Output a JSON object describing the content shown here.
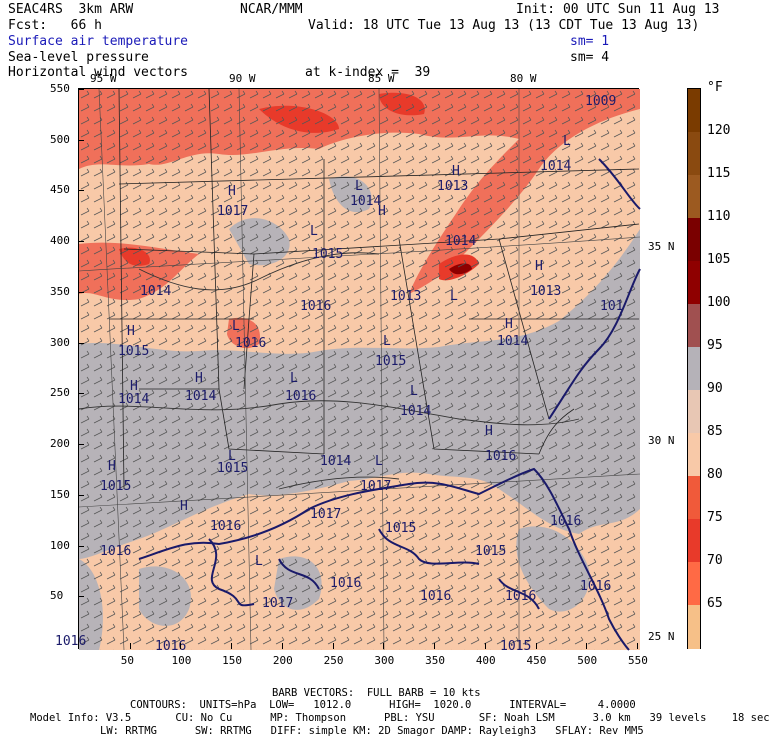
{
  "header": {
    "model": "SEAC4RS  3km ARW",
    "org": "NCAR/MMM",
    "init": "Init: 00 UTC Sun 11 Aug 13",
    "fcst": "Fcst:   66 h",
    "valid": "Valid: 18 UTC Tue 13 Aug 13 (13 CDT Tue 13 Aug 13)",
    "field1": "Surface air temperature",
    "field2": "Sea-level pressure",
    "field3": "Horizontal wind vectors",
    "kindex": "at k-index =  39",
    "sm1": "sm= 1",
    "sm2": "sm= 4"
  },
  "map": {
    "lon_labels": [
      "95 W",
      "90 W",
      "85 W",
      "80 W"
    ],
    "lat_labels": [
      "35 N",
      "30 N",
      "25 N"
    ],
    "x_ticks": [
      "50",
      "100",
      "150",
      "200",
      "250",
      "300",
      "350",
      "400",
      "450",
      "500",
      "550"
    ],
    "y_ticks": [
      "550",
      "500",
      "450",
      "400",
      "350",
      "300",
      "250",
      "200",
      "150",
      "100",
      "50"
    ],
    "pressure_labels": [
      {
        "t": "1009"
      },
      {
        "t": "1014"
      },
      {
        "t": "1013"
      },
      {
        "t": "1014"
      },
      {
        "t": "1017"
      },
      {
        "t": "1014"
      },
      {
        "t": "1015"
      },
      {
        "t": "1014"
      },
      {
        "t": "1013"
      },
      {
        "t": "1016"
      },
      {
        "t": "1013"
      },
      {
        "t": "1014"
      },
      {
        "t": "1015"
      },
      {
        "t": "1016"
      },
      {
        "t": "1015"
      },
      {
        "t": "1014"
      },
      {
        "t": "1014"
      },
      {
        "t": "1016"
      },
      {
        "t": "1014"
      },
      {
        "t": "1015"
      },
      {
        "t": "1014"
      },
      {
        "t": "1016"
      },
      {
        "t": "1015"
      },
      {
        "t": "1017"
      },
      {
        "t": "1017"
      },
      {
        "t": "1016"
      },
      {
        "t": "1016"
      },
      {
        "t": "1015"
      },
      {
        "t": "1016"
      },
      {
        "t": "1015"
      },
      {
        "t": "1016"
      },
      {
        "t": "1016"
      },
      {
        "t": "1017"
      },
      {
        "t": "1016"
      },
      {
        "t": "1016"
      },
      {
        "t": "1016"
      },
      {
        "t": "1015"
      },
      {
        "t": "1016"
      },
      {
        "t": "101"
      }
    ],
    "high_low_marks": [
      "H",
      "L",
      "H",
      "L",
      "H",
      "L",
      "H",
      "L",
      "H",
      "L",
      "H",
      "L",
      "H",
      "L",
      "H",
      "L",
      "H",
      "L",
      "H",
      "L",
      "H",
      "L"
    ]
  },
  "colorbar": {
    "unit": "°F",
    "labels": [
      "120",
      "115",
      "110",
      "105",
      "100",
      "95",
      "90",
      "85",
      "80",
      "75",
      "70",
      "65"
    ],
    "colors": [
      "#7a3b00",
      "#8a4a10",
      "#9c5a20",
      "#7a0000",
      "#8f0000",
      "#a05050",
      "#b5b2b8",
      "#e8c7b4",
      "#f8c9a8",
      "#f05a3a",
      "#e83a2a",
      "#ff6a45",
      "#f6c088"
    ]
  },
  "footer": {
    "barb": "BARB VECTORS:  FULL BARB = 10 kts",
    "contours": "CONTOURS:  UNITS=hPa  LOW=   1012.0      HIGH=  1020.0      INTERVAL=     4.0000",
    "info1": "Model Info: V3.5       CU: No Cu      MP: Thompson      PBL: YSU       SF: Noah LSM      3.0 km   39 levels    18 sec",
    "info2": "LW: RRTMG      SW: RRTMG   DIFF: simple KM: 2D Smagor DAMP: Rayleigh3   SFLAY: Rev MM5"
  }
}
